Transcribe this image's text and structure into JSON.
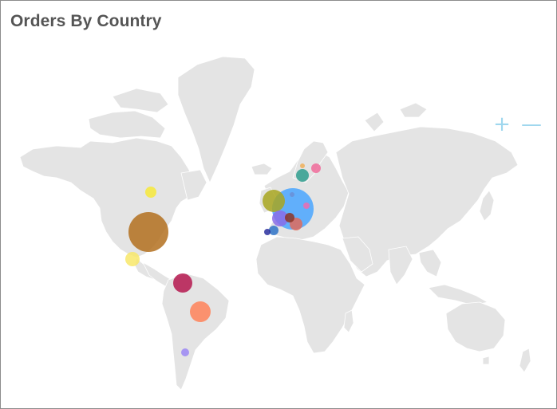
{
  "panel": {
    "title": "Orders By Country",
    "zoom_in_label": "+",
    "zoom_out_label": "—"
  },
  "colors": {
    "land": "#e4e4e4",
    "zoom": "#9fd7ee"
  },
  "markers": [
    {
      "country": "United States",
      "color": "#b3701f"
    },
    {
      "country": "Canada",
      "color": "#f7e93a"
    },
    {
      "country": "Mexico",
      "color": "#f8e86a"
    },
    {
      "country": "Venezuela",
      "color": "#b5174f"
    },
    {
      "country": "Brazil",
      "color": "#ff8259"
    },
    {
      "country": "Argentina",
      "color": "#9b87f5"
    },
    {
      "country": "Germany",
      "color": "#4aa6ff"
    },
    {
      "country": "United Kingdom",
      "color": "#a8a620"
    },
    {
      "country": "France",
      "color": "#8a6ce8"
    },
    {
      "country": "Austria",
      "color": "#e06b5b"
    },
    {
      "country": "Switzerland",
      "color": "#8c3526"
    },
    {
      "country": "Spain",
      "color": "#2f73c7"
    },
    {
      "country": "Portugal",
      "color": "#2a2f9e"
    },
    {
      "country": "Sweden",
      "color": "#2f9e8e"
    },
    {
      "country": "Finland",
      "color": "#f06b9a"
    },
    {
      "country": "Norway",
      "color": "#f0b05a"
    },
    {
      "country": "Poland",
      "color": "#ee6bb0"
    },
    {
      "country": "Denmark",
      "color": "#6a8fd6"
    }
  ]
}
